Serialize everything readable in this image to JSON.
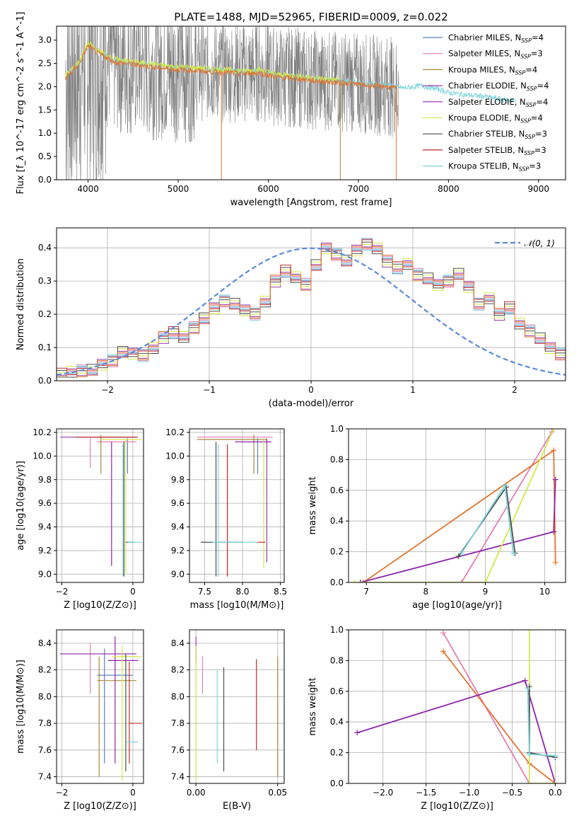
{
  "title": "PLATE=1488, MJD=52965, FIBERID=0009, z=0.022",
  "colors": {
    "Chabrier MILES": "#5b7fc4",
    "Salpeter MILES": "#e57fb5",
    "Kroupa MILES": "#a8893a",
    "Chabrier ELODIE": "#9a3ab0",
    "Salpeter ELODIE": "#8e24aa",
    "Kroupa ELODIE": "#d4e84a",
    "Chabrier STELIB": "#4d4d4d",
    "Salpeter STELIB": "#c0282b",
    "Kroupa STELIB": "#7fd4dc",
    "orange_model": "#e3752f",
    "gray_data": "#7f7f7f",
    "gauss": "#5b8bd8"
  },
  "chart_data": [
    {
      "id": "spectrum",
      "type": "line",
      "xlabel": "wavelength [Angstrom, rest frame]",
      "ylabel": "Flux [f_λ 10^-17 erg cm^-2 s^-1 A^-1]",
      "xlim": [
        3650,
        9300
      ],
      "ylim": [
        0,
        3.3
      ],
      "xticks": [
        "4000",
        "5000",
        "6000",
        "7000",
        "8000",
        "9000"
      ],
      "yticks": [
        "0.0",
        "0.5",
        "1.0",
        "1.5",
        "2.0",
        "2.5",
        "3.0"
      ],
      "grid": false,
      "legend_position": "top-right",
      "legend": [
        {
          "model": "Chabrier MILES",
          "n": "4"
        },
        {
          "model": "Salpeter MILES",
          "n": "3"
        },
        {
          "model": "Kroupa MILES",
          "n": "4"
        },
        {
          "model": "Chabrier ELODIE",
          "n": "4"
        },
        {
          "model": "Salpeter ELODIE",
          "n": "4"
        },
        {
          "model": "Kroupa ELODIE",
          "n": "4"
        },
        {
          "model": "Chabrier STELIB",
          "n": "3"
        },
        {
          "model": "Salpeter STELIB",
          "n": "3"
        },
        {
          "model": "Kroupa STELIB",
          "n": "3"
        }
      ],
      "continuum": [
        [
          3750,
          2.2
        ],
        [
          3900,
          2.5
        ],
        [
          4000,
          2.9
        ],
        [
          4100,
          2.75
        ],
        [
          4200,
          2.65
        ],
        [
          4300,
          2.55
        ],
        [
          4500,
          2.5
        ],
        [
          4700,
          2.45
        ],
        [
          4900,
          2.4
        ],
        [
          5100,
          2.38
        ],
        [
          5300,
          2.35
        ],
        [
          5500,
          2.33
        ],
        [
          5700,
          2.3
        ],
        [
          5900,
          2.32
        ],
        [
          6100,
          2.22
        ],
        [
          6300,
          2.2
        ],
        [
          6500,
          2.15
        ],
        [
          6700,
          2.12
        ],
        [
          6900,
          2.1
        ],
        [
          7100,
          2.05
        ],
        [
          7300,
          2.03
        ],
        [
          7500,
          1.95
        ],
        [
          7700,
          2.0
        ],
        [
          7900,
          1.92
        ],
        [
          8000,
          1.85
        ],
        [
          8200,
          1.8
        ],
        [
          8400,
          1.77
        ],
        [
          8600,
          1.7
        ],
        [
          8800,
          1.68
        ],
        [
          9000,
          1.63
        ]
      ],
      "data_range": [
        3750,
        7450
      ],
      "model_ranges": {
        "MILES": [
          3750,
          7420
        ],
        "ELODIE": [
          3750,
          6800
        ],
        "STELIB": [
          3750,
          8750
        ]
      }
    },
    {
      "id": "residuals",
      "type": "bar",
      "xlabel": "(data-model)/error",
      "ylabel": "Normed distribution",
      "xlim": [
        -2.5,
        2.5
      ],
      "ylim": [
        0,
        0.46
      ],
      "xticks": [
        "−2",
        "−1",
        "0",
        "1",
        "2"
      ],
      "yticks": [
        "0.0",
        "0.1",
        "0.2",
        "0.3",
        "0.4"
      ],
      "grid": true,
      "legend_position": "top-right",
      "gauss_label": "𝒩(0, 1)",
      "bin_width": 0.1,
      "x_start": -2.5,
      "hist": [
        0.02,
        0.025,
        0.03,
        0.035,
        0.05,
        0.06,
        0.085,
        0.08,
        0.075,
        0.1,
        0.13,
        0.145,
        0.13,
        0.16,
        0.19,
        0.22,
        0.24,
        0.23,
        0.21,
        0.2,
        0.24,
        0.3,
        0.33,
        0.31,
        0.29,
        0.35,
        0.4,
        0.38,
        0.36,
        0.39,
        0.41,
        0.4,
        0.36,
        0.34,
        0.35,
        0.32,
        0.31,
        0.29,
        0.3,
        0.32,
        0.28,
        0.23,
        0.25,
        0.2,
        0.22,
        0.17,
        0.15,
        0.13,
        0.1,
        0.08,
        0.065,
        0.06,
        0.055,
        0.05,
        0.045,
        0.035,
        0.03,
        0.03,
        0.025,
        0.02,
        0.04
      ]
    },
    {
      "id": "z_age",
      "type": "scatter",
      "xlabel": "Z [log10(Z/Z⊙)]",
      "ylabel": "age [log10(age/yr)]",
      "xlim": [
        -2.15,
        0.3
      ],
      "ylim": [
        8.93,
        10.23
      ],
      "xticks": [
        "−2",
        "0"
      ],
      "yticks": [
        "9.0",
        "9.2",
        "9.4",
        "9.6",
        "9.8",
        "10.0",
        "10.2"
      ],
      "grid": true,
      "segments": [
        {
          "model": "Chabrier MILES",
          "v": [
            -0.15,
            9.85,
            10.15
          ]
        },
        {
          "model": "Salpeter MILES",
          "v": [
            -1.2,
            9.9,
            10.15
          ],
          "h": [
            10.12,
            -1.0,
            0.1
          ]
        },
        {
          "model": "Kroupa MILES",
          "v": [
            -0.9,
            9.85,
            10.18
          ]
        },
        {
          "model": "Chabrier ELODIE",
          "h": [
            10.16,
            -2.05,
            0.15
          ]
        },
        {
          "model": "Salpeter ELODIE",
          "v": [
            -0.6,
            9.07,
            10.12
          ]
        },
        {
          "model": "Kroupa ELODIE",
          "v": [
            -0.2,
            9.0,
            10.15
          ],
          "h": [
            10.14,
            -0.9,
            0.25
          ]
        },
        {
          "model": "Chabrier STELIB",
          "v": [
            -0.25,
            8.98,
            10.12
          ],
          "h": [
            9.27,
            -0.2,
            0.05
          ]
        },
        {
          "model": "Salpeter STELIB",
          "h": [
            10.16,
            -1.6,
            0.1
          ]
        },
        {
          "model": "Kroupa STELIB",
          "v": [
            -0.28,
            8.98,
            10.1
          ],
          "h": [
            9.27,
            -0.15,
            0.25
          ]
        }
      ]
    },
    {
      "id": "mass_age",
      "type": "scatter",
      "xlabel": "mass [log10(M/M⊙)]",
      "ylabel": "",
      "xlim": [
        7.3,
        8.55
      ],
      "ylim": [
        8.93,
        10.23
      ],
      "xticks": [
        "7.5",
        "8.0",
        "8.5"
      ],
      "yticks": [
        "9.0",
        "9.2",
        "9.4",
        "9.6",
        "9.8",
        "10.0",
        "10.2"
      ],
      "grid": true,
      "segments": [
        {
          "model": "Chabrier MILES",
          "v": [
            8.2,
            9.85,
            10.15
          ]
        },
        {
          "model": "Salpeter MILES",
          "h": [
            10.16,
            7.4,
            8.4
          ]
        },
        {
          "model": "Kroupa MILES",
          "v": [
            8.15,
            9.85,
            10.18
          ],
          "h": [
            10.14,
            7.4,
            8.32
          ]
        },
        {
          "model": "Chabrier ELODIE",
          "v": [
            8.32,
            9.1,
            10.15
          ]
        },
        {
          "model": "Salpeter ELODIE",
          "h": [
            10.12,
            7.9,
            8.38
          ]
        },
        {
          "model": "Kroupa ELODIE",
          "v": [
            8.28,
            9.05,
            10.15
          ]
        },
        {
          "model": "Chabrier STELIB",
          "v": [
            7.65,
            8.98,
            10.12
          ],
          "h": [
            9.27,
            7.45,
            8.0
          ]
        },
        {
          "model": "Salpeter STELIB",
          "v": [
            7.8,
            8.98,
            10.1
          ],
          "h": [
            9.27,
            8.2,
            8.3
          ]
        },
        {
          "model": "Kroupa STELIB",
          "v": [
            7.68,
            8.98,
            10.1
          ],
          "h": [
            9.27,
            7.6,
            8.2
          ]
        }
      ]
    },
    {
      "id": "age_weight",
      "type": "line",
      "xlabel": "age [log10(age/yr)]",
      "ylabel": "mass weight",
      "xlim": [
        6.7,
        10.35
      ],
      "ylim": [
        0,
        1.0
      ],
      "xticks": [
        "7",
        "8",
        "9",
        "10"
      ],
      "yticks": [
        "0.0",
        "0.2",
        "0.4",
        "0.6",
        "0.8",
        "1.0"
      ],
      "grid": true,
      "series": [
        {
          "model": "Salpeter MILES",
          "points": [
            [
              8.6,
              0.0
            ],
            [
              10.12,
              0.98
            ]
          ]
        },
        {
          "model": "Kroupa MILES",
          "points": [
            [
              6.95,
              0.0
            ],
            [
              10.15,
              0.86
            ],
            [
              10.18,
              0.13
            ]
          ]
        },
        {
          "model": "Salpeter ELODIE",
          "points": [
            [
              6.9,
              0.0
            ],
            [
              10.15,
              0.33
            ],
            [
              10.18,
              0.67
            ]
          ]
        },
        {
          "model": "Kroupa ELODIE",
          "points": [
            [
              6.8,
              0.0
            ],
            [
              9.0,
              0.0
            ],
            [
              10.15,
              1.0
            ]
          ]
        },
        {
          "model": "Chabrier STELIB",
          "points": [
            [
              8.55,
              0.17
            ],
            [
              9.35,
              0.62
            ],
            [
              9.5,
              0.19
            ]
          ]
        },
        {
          "model": "Kroupa STELIB",
          "points": [
            [
              8.6,
              0.19
            ],
            [
              9.33,
              0.63
            ],
            [
              9.47,
              0.19
            ]
          ]
        }
      ]
    },
    {
      "id": "z_mass",
      "type": "scatter",
      "xlabel": "Z [log10(Z/Z⊙)]",
      "ylabel": "mass [log10(M/M⊙)]",
      "xlim": [
        -2.15,
        0.3
      ],
      "ylim": [
        7.35,
        8.5
      ],
      "xticks": [
        "−2",
        "0"
      ],
      "yticks": [
        "7.4",
        "7.6",
        "7.8",
        "8.0",
        "8.2",
        "8.4"
      ],
      "grid": true,
      "segments": [
        {
          "model": "Chabrier MILES",
          "v": [
            -0.8,
            7.5,
            8.36
          ],
          "h": [
            8.16,
            -1.0,
            0.0
          ]
        },
        {
          "model": "Salpeter MILES",
          "v": [
            -1.2,
            8.02,
            8.4
          ]
        },
        {
          "model": "Kroupa MILES",
          "v": [
            -0.95,
            7.4,
            8.3
          ],
          "h": [
            8.12,
            -1.0,
            0.1
          ]
        },
        {
          "model": "Chabrier ELODIE",
          "h": [
            8.32,
            -2.05,
            0.1
          ]
        },
        {
          "model": "Salpeter ELODIE",
          "v": [
            -0.5,
            7.5,
            8.45
          ],
          "h": [
            8.27,
            -0.7,
            0.15
          ]
        },
        {
          "model": "Kroupa ELODIE",
          "v": [
            -0.3,
            7.37,
            8.38
          ],
          "h": [
            8.3,
            -0.6,
            0.25
          ]
        },
        {
          "model": "Chabrier STELIB",
          "v": [
            -0.2,
            7.44,
            8.32
          ]
        },
        {
          "model": "Salpeter STELIB",
          "v": [
            -0.1,
            7.5,
            8.26
          ],
          "h": [
            7.8,
            -0.1,
            0.25
          ]
        },
        {
          "model": "Kroupa STELIB",
          "h": [
            7.66,
            -0.2,
            0.15
          ]
        }
      ]
    },
    {
      "id": "ebv_mass",
      "type": "scatter",
      "xlabel": "E(B-V)",
      "ylabel": "",
      "xlim": [
        -0.004,
        0.054
      ],
      "ylim": [
        7.35,
        8.5
      ],
      "xticks": [
        "0.00",
        "0.05"
      ],
      "yticks": [
        "7.4",
        "7.6",
        "7.8",
        "8.0",
        "8.2",
        "8.4"
      ],
      "grid": true,
      "segments": [
        {
          "model": "Chabrier ELODIE",
          "v": [
            0.0,
            8.25,
            8.45
          ]
        },
        {
          "model": "Kroupa ELODIE",
          "v": [
            0.0,
            7.37,
            8.38
          ]
        },
        {
          "model": "Salpeter MILES",
          "v": [
            0.004,
            8.02,
            8.3
          ]
        },
        {
          "model": "Kroupa STELIB",
          "v": [
            0.013,
            7.5,
            8.2
          ]
        },
        {
          "model": "Chabrier STELIB",
          "v": [
            0.017,
            7.44,
            8.22
          ]
        },
        {
          "model": "Salpeter STELIB",
          "v": [
            0.037,
            7.6,
            8.28
          ]
        },
        {
          "model": "Kroupa MILES",
          "v": [
            0.05,
            7.4,
            8.3
          ]
        }
      ]
    },
    {
      "id": "z_weight",
      "type": "line",
      "xlabel": "Z [log10(Z/Z⊙)]",
      "ylabel": "mass weight",
      "xlim": [
        -2.4,
        0.12
      ],
      "ylim": [
        0,
        1.0
      ],
      "xticks": [
        "−2.0",
        "−1.5",
        "−1.0",
        "−0.5",
        "0.0"
      ],
      "yticks": [
        "0.0",
        "0.2",
        "0.4",
        "0.6",
        "0.8",
        "1.0"
      ],
      "grid": true,
      "series": [
        {
          "model": "Salpeter MILES",
          "points": [
            [
              -1.3,
              0.98
            ],
            [
              -0.3,
              0.0
            ]
          ]
        },
        {
          "model": "Kroupa MILES",
          "points": [
            [
              -1.3,
              0.86
            ],
            [
              -0.3,
              0.13
            ],
            [
              0.0,
              0.0
            ]
          ]
        },
        {
          "model": "Salpeter ELODIE",
          "points": [
            [
              -2.3,
              0.33
            ],
            [
              -0.35,
              0.67
            ],
            [
              0.0,
              0.0
            ]
          ]
        },
        {
          "model": "Kroupa ELODIE",
          "points": [
            [
              -0.3,
              1.0
            ],
            [
              -0.3,
              0.0
            ],
            [
              0.0,
              0.0
            ]
          ]
        },
        {
          "model": "Chabrier STELIB",
          "points": [
            [
              -0.3,
              0.63
            ],
            [
              -0.3,
              0.2
            ],
            [
              0.0,
              0.17
            ]
          ]
        },
        {
          "model": "Kroupa STELIB",
          "points": [
            [
              -0.32,
              0.62
            ],
            [
              -0.3,
              0.19
            ],
            [
              0.0,
              0.18
            ]
          ]
        }
      ]
    }
  ]
}
